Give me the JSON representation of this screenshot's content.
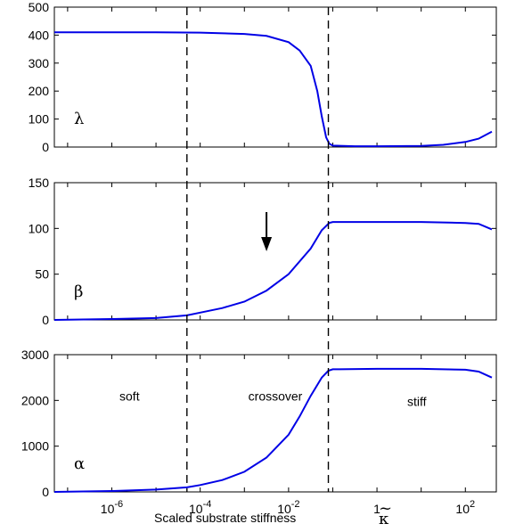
{
  "chart_data": [
    {
      "type": "line",
      "panel_label": "λ",
      "xscale": "log",
      "xlim_log10": [
        -7.3,
        2.7
      ],
      "ylim": [
        0,
        500
      ],
      "yticks": [
        {
          "v": 0,
          "label": "0"
        },
        {
          "v": 100,
          "label": "100"
        },
        {
          "v": 200,
          "label": "200"
        },
        {
          "v": 300,
          "label": "300"
        },
        {
          "v": 400,
          "label": "400"
        },
        {
          "v": 500,
          "label": "500"
        }
      ],
      "series": [
        {
          "color": "#0000e6",
          "x_log10": [
            -7.3,
            -6,
            -5,
            -4,
            -3,
            -2.5,
            -2,
            -1.75,
            -1.5,
            -1.35,
            -1.25,
            -1.15,
            -1.08,
            -1,
            -0.5,
            0,
            1,
            1.5,
            2,
            2.3,
            2.6
          ],
          "y": [
            410,
            410,
            410,
            409,
            404,
            397,
            375,
            345,
            290,
            200,
            110,
            35,
            12,
            5,
            3,
            3,
            4,
            8,
            18,
            30,
            55
          ]
        }
      ]
    },
    {
      "type": "line",
      "panel_label": "β",
      "xscale": "log",
      "xlim_log10": [
        -7.3,
        2.7
      ],
      "ylim": [
        0,
        150
      ],
      "yticks": [
        {
          "v": 0,
          "label": "0"
        },
        {
          "v": 50,
          "label": "50"
        },
        {
          "v": 100,
          "label": "100"
        },
        {
          "v": 150,
          "label": "150"
        }
      ],
      "series": [
        {
          "color": "#0000e6",
          "x_log10": [
            -7.3,
            -6,
            -5,
            -4.3,
            -4,
            -3.5,
            -3,
            -2.5,
            -2,
            -1.5,
            -1.25,
            -1.08,
            -1,
            0,
            1,
            2,
            2.3,
            2.6
          ],
          "y": [
            0,
            1,
            2,
            5,
            8,
            13,
            20,
            32,
            50,
            78,
            98,
            106,
            107,
            107,
            107,
            106,
            105,
            99
          ]
        }
      ],
      "annotation": {
        "type": "arrow",
        "direction": "down",
        "x_log10": -2.5
      }
    },
    {
      "type": "line",
      "panel_label": "α",
      "xscale": "log",
      "xlim_log10": [
        -7.3,
        2.7
      ],
      "ylim": [
        0,
        3000
      ],
      "yticks": [
        {
          "v": 0,
          "label": "0"
        },
        {
          "v": 1000,
          "label": "1000"
        },
        {
          "v": 2000,
          "label": "2000"
        },
        {
          "v": 3000,
          "label": "3000"
        }
      ],
      "xticks": [
        {
          "v": -6,
          "base": "10",
          "exp": "-6"
        },
        {
          "v": -4,
          "base": "10",
          "exp": "-4"
        },
        {
          "v": -2,
          "base": "10",
          "exp": "-2"
        },
        {
          "v": 0,
          "base": "1",
          "exp": ""
        },
        {
          "v": 2,
          "base": "10",
          "exp": "2"
        }
      ],
      "xlabel": "Scaled substrate stiffness",
      "xlabel_symbol": "κ",
      "xlabel_accent": "~",
      "regions": [
        {
          "label": "soft",
          "x_log10": -5.6,
          "y": 2000
        },
        {
          "label": "crossover",
          "x_log10": -2.3,
          "y": 2000
        },
        {
          "label": "stiff",
          "x_log10": 0.9,
          "y": 1880
        }
      ],
      "series": [
        {
          "color": "#0000e6",
          "x_log10": [
            -7.3,
            -6,
            -5,
            -4.3,
            -4,
            -3.5,
            -3,
            -2.5,
            -2,
            -1.75,
            -1.5,
            -1.25,
            -1.1,
            -1,
            0,
            1,
            2,
            2.3,
            2.6
          ],
          "y": [
            0,
            20,
            50,
            100,
            150,
            260,
            440,
            750,
            1250,
            1650,
            2100,
            2500,
            2650,
            2680,
            2690,
            2690,
            2670,
            2630,
            2500
          ]
        }
      ]
    }
  ],
  "vlines_log10": [
    -4.3,
    -1.1
  ]
}
